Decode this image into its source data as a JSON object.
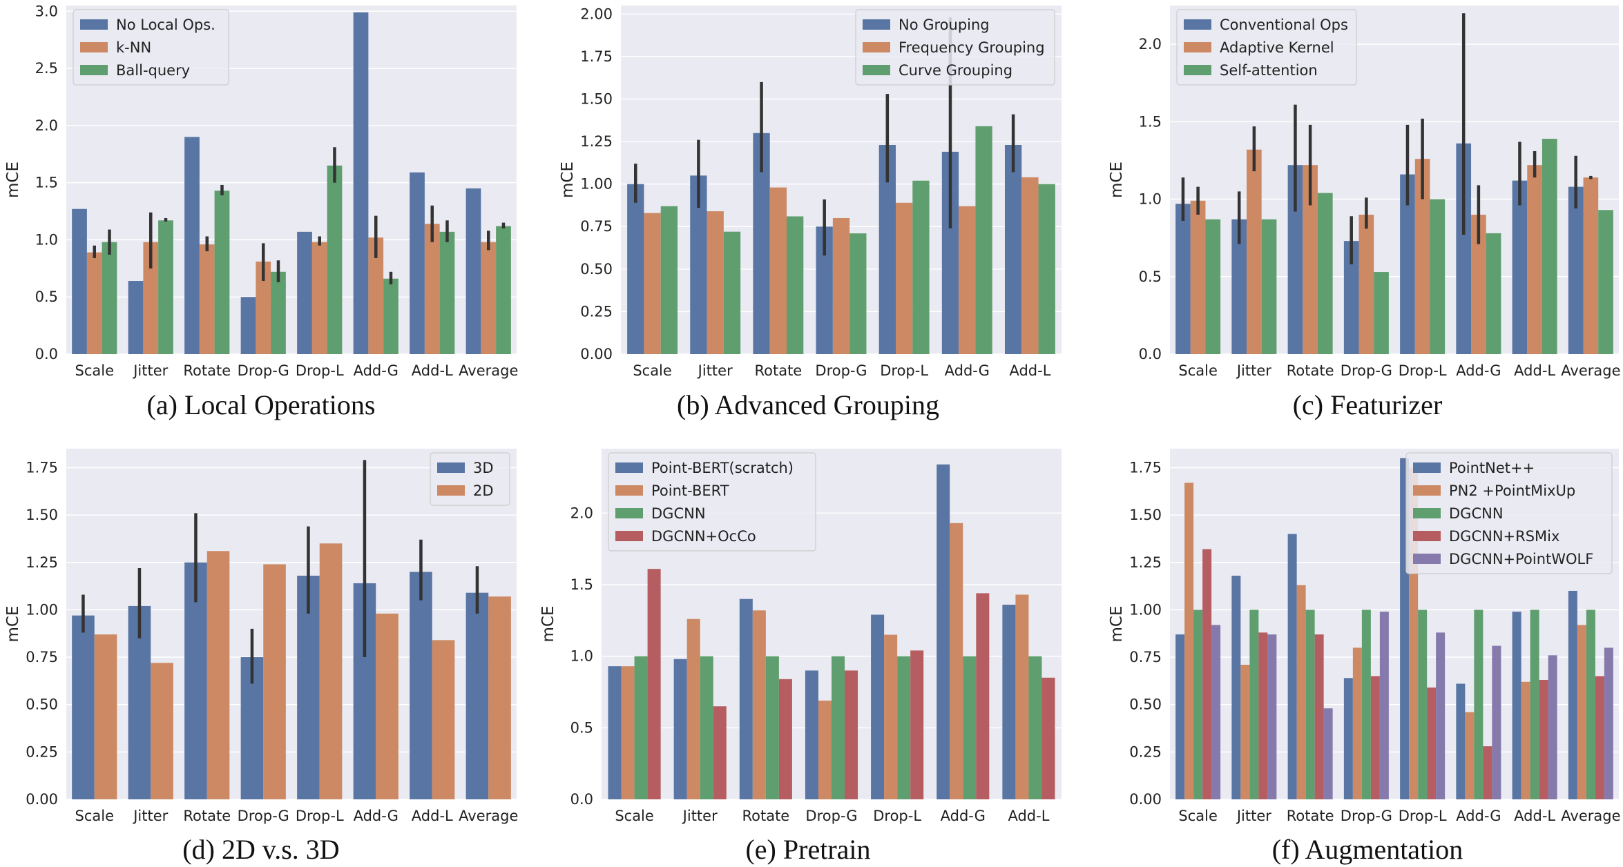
{
  "colors": {
    "panel_bg": "#eaeaf2",
    "grid": "#ffffff",
    "blue": "#5875a4",
    "orange": "#cc8963",
    "green": "#5f9e6e",
    "red": "#b55d60",
    "purple": "#857aab",
    "error_bar": "#333333"
  },
  "chart_data": [
    {
      "type": "bar",
      "caption": "(a) Local Operations",
      "ylabel": "mCE",
      "ylim": [
        0,
        3.05
      ],
      "yticks": [
        0.0,
        0.5,
        1.0,
        1.5,
        2.0,
        2.5,
        3.0
      ],
      "ytick_labels": [
        "0.0",
        "0.5",
        "1.0",
        "1.5",
        "2.0",
        "2.5",
        "3.0"
      ],
      "grid": true,
      "legend_position": "top-left",
      "categories": [
        "Scale",
        "Jitter",
        "Rotate",
        "Drop-G",
        "Drop-L",
        "Add-G",
        "Add-L",
        "Average"
      ],
      "series": [
        {
          "name": "No Local Ops.",
          "color": "blue",
          "values": [
            1.27,
            0.64,
            1.9,
            0.5,
            1.07,
            2.99,
            1.59,
            1.45
          ],
          "errors": [
            null,
            null,
            null,
            null,
            null,
            null,
            null,
            null
          ]
        },
        {
          "name": "k-NN",
          "color": "orange",
          "values": [
            0.89,
            0.98,
            0.96,
            0.81,
            0.98,
            1.02,
            1.14,
            0.98
          ],
          "errors": [
            [
              0.84,
              0.95
            ],
            [
              0.75,
              1.24
            ],
            [
              0.9,
              1.03
            ],
            [
              0.64,
              0.97
            ],
            [
              0.95,
              1.03
            ],
            [
              0.84,
              1.21
            ],
            [
              0.98,
              1.3
            ],
            [
              0.91,
              1.08
            ]
          ]
        },
        {
          "name": "Ball-query",
          "color": "green",
          "values": [
            0.98,
            1.17,
            1.43,
            0.72,
            1.65,
            0.66,
            1.07,
            1.12
          ],
          "errors": [
            [
              0.87,
              1.09
            ],
            [
              1.16,
              1.19
            ],
            [
              1.39,
              1.48
            ],
            [
              0.63,
              0.82
            ],
            [
              1.5,
              1.81
            ],
            [
              0.61,
              0.72
            ],
            [
              0.98,
              1.17
            ],
            [
              1.1,
              1.15
            ]
          ]
        }
      ]
    },
    {
      "type": "bar",
      "caption": "(b) Advanced Grouping",
      "ylabel": "mCE",
      "ylim": [
        0,
        2.05
      ],
      "yticks": [
        0.0,
        0.25,
        0.5,
        0.75,
        1.0,
        1.25,
        1.5,
        1.75,
        2.0
      ],
      "ytick_labels": [
        "0.00",
        "0.25",
        "0.50",
        "0.75",
        "1.00",
        "1.25",
        "1.50",
        "1.75",
        "2.00"
      ],
      "grid": true,
      "legend_position": "top-right",
      "categories": [
        "Scale",
        "Jitter",
        "Rotate",
        "Drop-G",
        "Drop-L",
        "Add-G",
        "Add-L"
      ],
      "series": [
        {
          "name": "No Grouping",
          "color": "blue",
          "values": [
            1.0,
            1.05,
            1.3,
            0.75,
            1.23,
            1.19,
            1.23
          ],
          "errors": [
            [
              0.89,
              1.12
            ],
            [
              0.86,
              1.26
            ],
            [
              1.07,
              1.6
            ],
            [
              0.58,
              0.91
            ],
            [
              1.01,
              1.53
            ],
            [
              0.74,
              1.98
            ],
            [
              1.07,
              1.41
            ]
          ]
        },
        {
          "name": "Frequency Grouping",
          "color": "orange",
          "values": [
            0.83,
            0.84,
            0.98,
            0.8,
            0.89,
            0.87,
            1.04
          ],
          "errors": [
            null,
            null,
            null,
            null,
            null,
            null,
            null
          ]
        },
        {
          "name": "Curve Grouping",
          "color": "green",
          "values": [
            0.87,
            0.72,
            0.81,
            0.71,
            1.02,
            1.34,
            1.0
          ],
          "errors": [
            null,
            null,
            null,
            null,
            null,
            null,
            null
          ]
        }
      ]
    },
    {
      "type": "bar",
      "caption": "(c) Featurizer",
      "ylabel": "mCE",
      "ylim": [
        0,
        2.25
      ],
      "yticks": [
        0.0,
        0.5,
        1.0,
        1.5,
        2.0
      ],
      "ytick_labels": [
        "0.0",
        "0.5",
        "1.0",
        "1.5",
        "2.0"
      ],
      "grid": true,
      "legend_position": "top-left",
      "categories": [
        "Scale",
        "Jitter",
        "Rotate",
        "Drop-G",
        "Drop-L",
        "Add-G",
        "Add-L",
        "Average"
      ],
      "series": [
        {
          "name": "Conventional Ops",
          "color": "blue",
          "values": [
            0.97,
            0.87,
            1.22,
            0.73,
            1.16,
            1.36,
            1.12,
            1.08
          ],
          "errors": [
            [
              0.86,
              1.14
            ],
            [
              0.71,
              1.05
            ],
            [
              0.92,
              1.61
            ],
            [
              0.58,
              0.89
            ],
            [
              0.96,
              1.48
            ],
            [
              0.77,
              2.2
            ],
            [
              0.96,
              1.37
            ],
            [
              0.94,
              1.28
            ]
          ]
        },
        {
          "name": "Adaptive Kernel",
          "color": "orange",
          "values": [
            0.99,
            1.32,
            1.22,
            0.9,
            1.26,
            0.9,
            1.22,
            1.14
          ],
          "errors": [
            [
              0.9,
              1.08
            ],
            [
              1.18,
              1.47
            ],
            [
              0.96,
              1.48
            ],
            [
              0.81,
              1.01
            ],
            [
              1.0,
              1.52
            ],
            [
              0.71,
              1.09
            ],
            [
              1.14,
              1.31
            ],
            [
              1.13,
              1.15
            ]
          ]
        },
        {
          "name": "Self-attention",
          "color": "green",
          "values": [
            0.87,
            0.87,
            1.04,
            0.53,
            1.0,
            0.78,
            1.39,
            0.93
          ],
          "errors": [
            null,
            null,
            null,
            null,
            null,
            null,
            null,
            null
          ]
        }
      ]
    },
    {
      "type": "bar",
      "caption": "(d) 2D v.s. 3D",
      "ylabel": "mCE",
      "ylim": [
        0,
        1.85
      ],
      "yticks": [
        0.0,
        0.25,
        0.5,
        0.75,
        1.0,
        1.25,
        1.5,
        1.75
      ],
      "ytick_labels": [
        "0.00",
        "0.25",
        "0.50",
        "0.75",
        "1.00",
        "1.25",
        "1.50",
        "1.75"
      ],
      "grid": true,
      "legend_position": "top-right",
      "categories": [
        "Scale",
        "Jitter",
        "Rotate",
        "Drop-G",
        "Drop-L",
        "Add-G",
        "Add-L",
        "Average"
      ],
      "series": [
        {
          "name": "3D",
          "color": "blue",
          "values": [
            0.97,
            1.02,
            1.25,
            0.75,
            1.18,
            1.14,
            1.2,
            1.09
          ],
          "errors": [
            [
              0.88,
              1.08
            ],
            [
              0.85,
              1.22
            ],
            [
              1.04,
              1.51
            ],
            [
              0.61,
              0.9
            ],
            [
              0.98,
              1.44
            ],
            [
              0.75,
              1.79
            ],
            [
              1.05,
              1.37
            ],
            [
              0.98,
              1.23
            ]
          ]
        },
        {
          "name": "2D",
          "color": "orange",
          "values": [
            0.87,
            0.72,
            1.31,
            1.24,
            1.35,
            0.98,
            0.84,
            1.07
          ],
          "errors": [
            null,
            null,
            null,
            null,
            null,
            null,
            null,
            null
          ]
        }
      ]
    },
    {
      "type": "bar",
      "caption": "(e) Pretrain",
      "ylabel": "mCE",
      "ylim": [
        0,
        2.45
      ],
      "yticks": [
        0.0,
        0.5,
        1.0,
        1.5,
        2.0
      ],
      "ytick_labels": [
        "0.0",
        "0.5",
        "1.0",
        "1.5",
        "2.0"
      ],
      "grid": true,
      "legend_position": "top-left",
      "categories": [
        "Scale",
        "Jitter",
        "Rotate",
        "Drop-G",
        "Drop-L",
        "Add-G",
        "Add-L"
      ],
      "series": [
        {
          "name": "Point-BERT(scratch)",
          "color": "blue",
          "values": [
            0.93,
            0.98,
            1.4,
            0.9,
            1.29,
            2.34,
            1.36
          ],
          "errors": [
            null,
            null,
            null,
            null,
            null,
            null,
            null
          ]
        },
        {
          "name": "Point-BERT",
          "color": "orange",
          "values": [
            0.93,
            1.26,
            1.32,
            0.69,
            1.15,
            1.93,
            1.43
          ],
          "errors": [
            null,
            null,
            null,
            null,
            null,
            null,
            null
          ]
        },
        {
          "name": "DGCNN",
          "color": "green",
          "values": [
            1.0,
            1.0,
            1.0,
            1.0,
            1.0,
            1.0,
            1.0
          ],
          "errors": [
            null,
            null,
            null,
            null,
            null,
            null,
            null
          ]
        },
        {
          "name": "DGCNN+OcCo",
          "color": "red",
          "values": [
            1.61,
            0.65,
            0.84,
            0.9,
            1.04,
            1.44,
            0.85
          ],
          "errors": [
            null,
            null,
            null,
            null,
            null,
            null,
            null
          ]
        }
      ]
    },
    {
      "type": "bar",
      "caption": "(f) Augmentation",
      "ylabel": "mCE",
      "ylim": [
        0,
        1.85
      ],
      "yticks": [
        0.0,
        0.25,
        0.5,
        0.75,
        1.0,
        1.25,
        1.5,
        1.75
      ],
      "ytick_labels": [
        "0.00",
        "0.25",
        "0.50",
        "0.75",
        "1.00",
        "1.25",
        "1.50",
        "1.75"
      ],
      "grid": true,
      "legend_position": "top-right",
      "categories": [
        "Scale",
        "Jitter",
        "Rotate",
        "Drop-G",
        "Drop-L",
        "Add-G",
        "Add-L",
        "Average"
      ],
      "series": [
        {
          "name": "PointNet++",
          "color": "blue",
          "values": [
            0.87,
            1.18,
            1.4,
            0.64,
            1.8,
            0.61,
            0.99,
            1.1
          ],
          "errors": [
            null,
            null,
            null,
            null,
            null,
            null,
            null,
            null
          ]
        },
        {
          "name": "PN2 +PointMixUp",
          "color": "orange",
          "values": [
            1.67,
            0.71,
            1.13,
            0.8,
            1.75,
            0.46,
            0.62,
            0.92
          ],
          "errors": [
            null,
            null,
            null,
            null,
            null,
            null,
            null,
            null
          ]
        },
        {
          "name": "DGCNN",
          "color": "green",
          "values": [
            1.0,
            1.0,
            1.0,
            1.0,
            1.0,
            1.0,
            1.0,
            1.0
          ],
          "errors": [
            null,
            null,
            null,
            null,
            null,
            null,
            null,
            null
          ]
        },
        {
          "name": "DGCNN+RSMix",
          "color": "red",
          "values": [
            1.32,
            0.88,
            0.87,
            0.65,
            0.59,
            0.28,
            0.63,
            0.65
          ],
          "errors": [
            null,
            null,
            null,
            null,
            null,
            null,
            null,
            null
          ]
        },
        {
          "name": "DGCNN+PointWOLF",
          "color": "purple",
          "values": [
            0.92,
            0.87,
            0.48,
            0.99,
            0.88,
            0.81,
            0.76,
            0.8
          ],
          "errors": [
            null,
            null,
            null,
            null,
            null,
            null,
            null,
            null
          ]
        }
      ]
    }
  ]
}
